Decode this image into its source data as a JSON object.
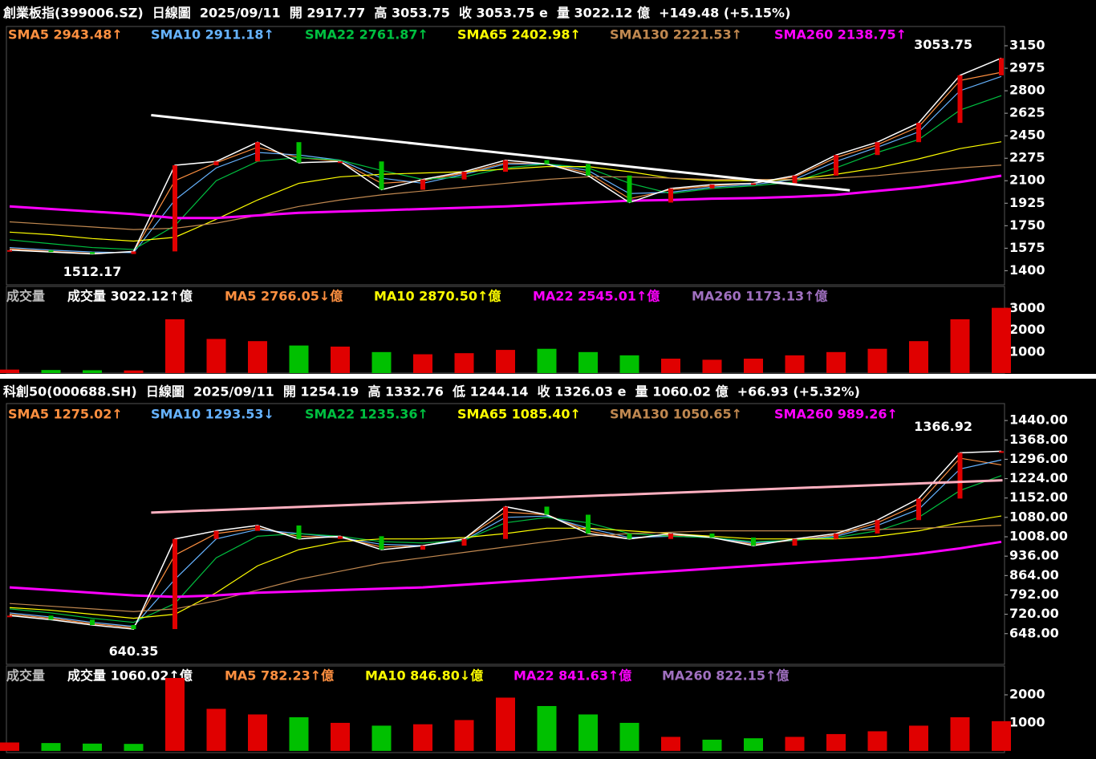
{
  "chart_data": [
    {
      "type": "line",
      "title": "創業板指(399006.SZ)  日線圖  2025/09/11  開 2917.77  高 3053.75  收 3053.75 e  量 3022.12 億  +149.48 (+5.15%)",
      "values": [
        1560,
        1545,
        1530,
        1550,
        2220,
        2250,
        2400,
        2240,
        2250,
        2030,
        2110,
        2170,
        2260,
        2230,
        2140,
        1930,
        2040,
        2070,
        2080,
        2140,
        2300,
        2400,
        2550,
        2920,
        3053.75
      ],
      "color": "#ffffff",
      "series": [
        {
          "name": "SMA5 2943.48↑",
          "color": "#ff9040",
          "values": [
            1570,
            1550,
            1535,
            1545,
            2100,
            2240,
            2360,
            2280,
            2250,
            2080,
            2100,
            2160,
            2240,
            2230,
            2160,
            1960,
            2030,
            2060,
            2080,
            2130,
            2280,
            2380,
            2520,
            2880,
            2943.48
          ]
        },
        {
          "name": "SMA10 2911.18↑",
          "color": "#66b3ff",
          "values": [
            1580,
            1560,
            1545,
            1540,
            1950,
            2200,
            2320,
            2300,
            2260,
            2120,
            2080,
            2150,
            2230,
            2230,
            2180,
            2000,
            2010,
            2050,
            2070,
            2110,
            2250,
            2360,
            2480,
            2800,
            2911.18
          ]
        },
        {
          "name": "SMA22 2761.87↑",
          "color": "#00c040",
          "values": [
            1640,
            1610,
            1580,
            1565,
            1750,
            2100,
            2250,
            2280,
            2260,
            2180,
            2110,
            2130,
            2200,
            2230,
            2200,
            2080,
            2000,
            2040,
            2060,
            2090,
            2200,
            2320,
            2420,
            2650,
            2761.87
          ]
        },
        {
          "name": "SMA65 2402.98↑",
          "color": "#ffff00",
          "values": [
            1700,
            1680,
            1650,
            1630,
            1660,
            1800,
            1950,
            2080,
            2130,
            2150,
            2160,
            2170,
            2190,
            2210,
            2210,
            2170,
            2120,
            2100,
            2100,
            2110,
            2150,
            2200,
            2270,
            2350,
            2402.98
          ]
        },
        {
          "name": "SMA130 2221.53↑",
          "color": "#c08850",
          "values": [
            1780,
            1760,
            1740,
            1720,
            1730,
            1770,
            1830,
            1900,
            1950,
            1990,
            2020,
            2050,
            2080,
            2110,
            2130,
            2130,
            2120,
            2110,
            2110,
            2110,
            2120,
            2140,
            2170,
            2200,
            2221.53
          ]
        },
        {
          "name": "SMA260 2138.75↑",
          "color": "#ff00ff",
          "values": [
            1900,
            1880,
            1860,
            1840,
            1810,
            1810,
            1830,
            1850,
            1860,
            1870,
            1880,
            1890,
            1900,
            1915,
            1930,
            1945,
            1950,
            1960,
            1965,
            1975,
            1990,
            2020,
            2050,
            2090,
            2138.75
          ]
        }
      ],
      "ylim": [
        1290,
        3300
      ],
      "yticks": [
        1400,
        1575,
        1750,
        1925,
        2100,
        2275,
        2450,
        2625,
        2800,
        2975,
        3150
      ],
      "high": 3053.75,
      "low": 1512.17,
      "trendline": [
        2610,
        2025
      ],
      "trendline_color": "#ffffff"
    },
    {
      "type": "bar",
      "title": "成交量",
      "values": [
        200,
        180,
        170,
        160,
        2500,
        1600,
        1500,
        1300,
        1250,
        1000,
        900,
        950,
        1100,
        1150,
        1000,
        850,
        700,
        650,
        700,
        850,
        1000,
        1150,
        1500,
        2500,
        3022.12
      ],
      "up_color": "#e00000",
      "down_color": "#00c000",
      "legend": [
        {
          "name": "成交量 3022.12↑億",
          "color": "#ffffff"
        },
        {
          "name": "MA5 2766.05↓億",
          "color": "#ff9040"
        },
        {
          "name": "MA10 2870.50↑億",
          "color": "#ffff00"
        },
        {
          "name": "MA22 2545.01↑億",
          "color": "#ff00ff"
        },
        {
          "name": "MA260 1173.13↑億",
          "color": "#a070c0"
        }
      ],
      "ylim": [
        40,
        4000
      ],
      "yticks": [
        1000,
        2000,
        3000
      ]
    },
    {
      "type": "line",
      "title": "科創50(000688.SH)  日線圖  2025/09/11  開 1254.19  高 1332.76  低 1244.14  收 1326.03 e  量 1060.02 億  +66.93 (+5.32%)",
      "values": [
        715,
        700,
        680,
        665,
        1000,
        1030,
        1050,
        1000,
        1010,
        960,
        975,
        1000,
        1120,
        1090,
        1020,
        1000,
        1020,
        1005,
        975,
        1000,
        1020,
        1070,
        1150,
        1320,
        1326.03
      ],
      "color": "#ffffff",
      "series": [
        {
          "name": "SMA5 1275.02↑",
          "color": "#ff9040",
          "values": [
            720,
            705,
            685,
            670,
            940,
            1020,
            1040,
            1010,
            1005,
            970,
            975,
            1000,
            1100,
            1090,
            1030,
            1000,
            1015,
            1005,
            980,
            995,
            1015,
            1060,
            1130,
            1300,
            1275.02
          ]
        },
        {
          "name": "SMA10 1293.53↓",
          "color": "#66b3ff",
          "values": [
            725,
            710,
            690,
            675,
            850,
            1000,
            1035,
            1020,
            1005,
            980,
            975,
            995,
            1080,
            1085,
            1040,
            1005,
            1010,
            1005,
            985,
            995,
            1010,
            1050,
            1110,
            1260,
            1293.53
          ]
        },
        {
          "name": "SMA22 1235.36↑",
          "color": "#00c040",
          "values": [
            740,
            725,
            705,
            690,
            760,
            930,
            1010,
            1020,
            1010,
            990,
            985,
            995,
            1060,
            1080,
            1060,
            1020,
            1010,
            1005,
            990,
            995,
            1005,
            1030,
            1080,
            1180,
            1235.36
          ]
        },
        {
          "name": "SMA65 1085.40↑",
          "color": "#ffff00",
          "values": [
            745,
            735,
            720,
            705,
            720,
            800,
            900,
            960,
            990,
            1000,
            1000,
            1005,
            1020,
            1040,
            1040,
            1030,
            1020,
            1010,
            1000,
            1000,
            1000,
            1010,
            1030,
            1060,
            1085.4
          ]
        },
        {
          "name": "SMA130 1050.65↑",
          "color": "#c08850",
          "values": [
            760,
            750,
            740,
            730,
            740,
            770,
            810,
            850,
            880,
            910,
            930,
            950,
            970,
            990,
            1010,
            1020,
            1025,
            1030,
            1030,
            1030,
            1030,
            1035,
            1040,
            1045,
            1050.65
          ]
        },
        {
          "name": "SMA260 989.26↑",
          "color": "#ff00ff",
          "values": [
            820,
            810,
            800,
            790,
            785,
            790,
            800,
            805,
            810,
            815,
            820,
            830,
            840,
            850,
            860,
            870,
            880,
            890,
            900,
            910,
            920,
            930,
            945,
            965,
            989.26
          ]
        }
      ],
      "ylim": [
        534,
        1503
      ],
      "yticks": [
        {
          "value": 648,
          "label": "648.00"
        },
        {
          "value": 720,
          "label": "720.00"
        },
        {
          "value": 792,
          "label": "792.00"
        },
        {
          "value": 864,
          "label": "864.00"
        },
        {
          "value": 936,
          "label": "936.00"
        },
        {
          "value": 1008,
          "label": "1008.00"
        },
        {
          "value": 1080,
          "label": "1080.00"
        },
        {
          "value": 1152,
          "label": "1152.00"
        },
        {
          "value": 1224,
          "label": "1224.00"
        },
        {
          "value": 1296,
          "label": "1296.00"
        },
        {
          "value": 1368,
          "label": "1368.00"
        },
        {
          "value": 1440,
          "label": "1440.00"
        }
      ],
      "high": 1366.92,
      "low": 640.35,
      "trendline": [
        1098,
        1218
      ],
      "trendline_color": "#ffb0c0"
    },
    {
      "type": "bar",
      "title": "成交量",
      "values": [
        300,
        280,
        260,
        250,
        2600,
        1500,
        1300,
        1200,
        1000,
        900,
        950,
        1100,
        1900,
        1600,
        1300,
        1000,
        500,
        400,
        450,
        500,
        600,
        700,
        900,
        1200,
        1060.02
      ],
      "up_color": "#e00000",
      "down_color": "#00c000",
      "legend": [
        {
          "name": "成交量 1060.02↑億",
          "color": "#ffffff"
        },
        {
          "name": "MA5 782.23↑億",
          "color": "#ff9040"
        },
        {
          "name": "MA10 846.80↓億",
          "color": "#ffff00"
        },
        {
          "name": "MA22 841.63↑億",
          "color": "#ff00ff"
        },
        {
          "name": "MA260 822.15↑億",
          "color": "#a070c0"
        }
      ],
      "ylim": [
        -60,
        3030
      ],
      "yticks": [
        1000,
        2000
      ]
    }
  ]
}
